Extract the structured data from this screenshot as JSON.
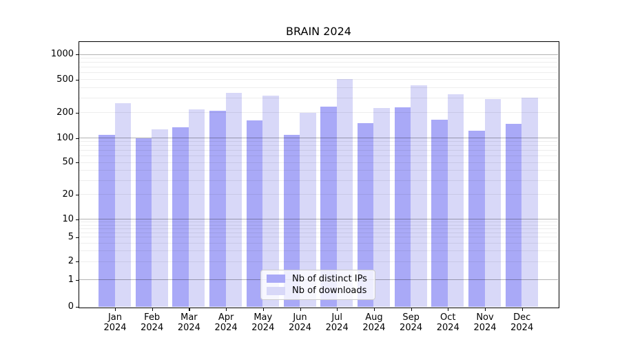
{
  "chart_data": {
    "type": "bar",
    "title": "BRAIN 2024",
    "categories": [
      "Jan 2024",
      "Feb 2024",
      "Mar 2024",
      "Apr 2024",
      "May 2024",
      "Jun 2024",
      "Jul 2024",
      "Aug 2024",
      "Sep 2024",
      "Oct 2024",
      "Nov 2024",
      "Dec 2024"
    ],
    "series": [
      {
        "name": "Nb of distinct IPs",
        "color": "#a9a9f7",
        "values": [
          108,
          98,
          132,
          210,
          160,
          108,
          235,
          148,
          230,
          165,
          120,
          145
        ]
      },
      {
        "name": "Nb of downloads",
        "color": "#d8d8f8",
        "values": [
          260,
          125,
          218,
          340,
          320,
          198,
          505,
          228,
          420,
          330,
          290,
          300
        ]
      }
    ],
    "xlabel": "",
    "ylabel": "",
    "yscale": "symlog",
    "yticks": [
      0,
      1,
      2,
      5,
      10,
      20,
      50,
      100,
      200,
      500,
      1000
    ],
    "ylim": [
      0,
      1400
    ],
    "grid": "both",
    "grid_major_color": "#b0b0b0",
    "grid_minor_color": "#e9e9e9",
    "legend_position": "lower center"
  }
}
